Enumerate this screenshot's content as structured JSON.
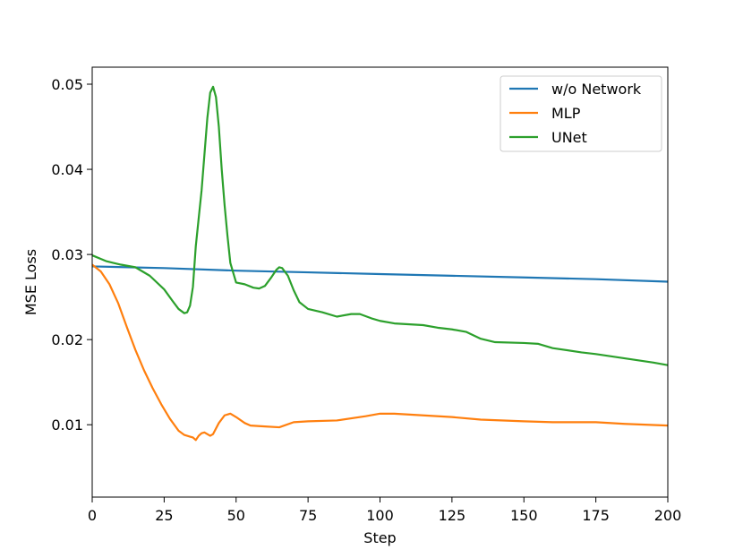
{
  "chart_data": {
    "type": "line",
    "title": "",
    "xlabel": "Step",
    "ylabel": "MSE Loss",
    "xlim": [
      0,
      200
    ],
    "ylim": [
      0.0015,
      0.052
    ],
    "xticks": [
      0,
      25,
      50,
      75,
      100,
      125,
      150,
      175,
      200
    ],
    "xtick_labels": [
      "0",
      "25",
      "50",
      "75",
      "100",
      "125",
      "150",
      "175",
      "200"
    ],
    "yticks": [
      0.01,
      0.02,
      0.03,
      0.04,
      0.05
    ],
    "ytick_labels": [
      "0.01",
      "0.02",
      "0.03",
      "0.04",
      "0.05"
    ],
    "grid": false,
    "legend_position": "top-right",
    "series": [
      {
        "name": "w/o Network",
        "color": "#1f77b4",
        "points": [
          [
            0,
            0.0286
          ],
          [
            25,
            0.0284
          ],
          [
            50,
            0.0281
          ],
          [
            75,
            0.0279
          ],
          [
            100,
            0.0277
          ],
          [
            125,
            0.0275
          ],
          [
            150,
            0.0273
          ],
          [
            175,
            0.0271
          ],
          [
            200,
            0.0268
          ]
        ]
      },
      {
        "name": "MLP",
        "color": "#ff7f0e",
        "points": [
          [
            0,
            0.0288
          ],
          [
            3,
            0.028
          ],
          [
            6,
            0.0265
          ],
          [
            9,
            0.0243
          ],
          [
            12,
            0.0215
          ],
          [
            15,
            0.0188
          ],
          [
            18,
            0.0164
          ],
          [
            21,
            0.0143
          ],
          [
            24,
            0.0124
          ],
          [
            27,
            0.0107
          ],
          [
            30,
            0.0093
          ],
          [
            32,
            0.0088
          ],
          [
            34,
            0.0086
          ],
          [
            35,
            0.0085
          ],
          [
            36,
            0.0082
          ],
          [
            37,
            0.0087
          ],
          [
            38,
            0.009
          ],
          [
            39,
            0.0091
          ],
          [
            40,
            0.0089
          ],
          [
            41,
            0.0087
          ],
          [
            42,
            0.0089
          ],
          [
            44,
            0.0102
          ],
          [
            46,
            0.0111
          ],
          [
            48,
            0.0113
          ],
          [
            50,
            0.0109
          ],
          [
            53,
            0.0102
          ],
          [
            55,
            0.0099
          ],
          [
            60,
            0.0098
          ],
          [
            65,
            0.0097
          ],
          [
            70,
            0.0103
          ],
          [
            75,
            0.0104
          ],
          [
            85,
            0.0105
          ],
          [
            95,
            0.011
          ],
          [
            100,
            0.0113
          ],
          [
            105,
            0.0113
          ],
          [
            115,
            0.0111
          ],
          [
            125,
            0.0109
          ],
          [
            135,
            0.0106
          ],
          [
            150,
            0.0104
          ],
          [
            160,
            0.0103
          ],
          [
            175,
            0.0103
          ],
          [
            185,
            0.0101
          ],
          [
            200,
            0.0099
          ]
        ]
      },
      {
        "name": "UNet",
        "color": "#2ca02c",
        "points": [
          [
            0,
            0.0299
          ],
          [
            5,
            0.0292
          ],
          [
            10,
            0.0288
          ],
          [
            15,
            0.0285
          ],
          [
            20,
            0.0275
          ],
          [
            25,
            0.0259
          ],
          [
            28,
            0.0245
          ],
          [
            30,
            0.0236
          ],
          [
            32,
            0.0231
          ],
          [
            33,
            0.0232
          ],
          [
            34,
            0.024
          ],
          [
            35,
            0.0262
          ],
          [
            36,
            0.031
          ],
          [
            38,
            0.0375
          ],
          [
            40,
            0.046
          ],
          [
            41,
            0.049
          ],
          [
            42,
            0.0497
          ],
          [
            43,
            0.0485
          ],
          [
            44,
            0.045
          ],
          [
            45,
            0.04
          ],
          [
            46,
            0.0358
          ],
          [
            47,
            0.0322
          ],
          [
            48,
            0.029
          ],
          [
            50,
            0.0267
          ],
          [
            53,
            0.0265
          ],
          [
            56,
            0.0261
          ],
          [
            58,
            0.026
          ],
          [
            60,
            0.0263
          ],
          [
            62,
            0.0272
          ],
          [
            64,
            0.0282
          ],
          [
            65,
            0.0285
          ],
          [
            66,
            0.0284
          ],
          [
            68,
            0.0275
          ],
          [
            70,
            0.0258
          ],
          [
            72,
            0.0244
          ],
          [
            75,
            0.0236
          ],
          [
            80,
            0.0232
          ],
          [
            85,
            0.0227
          ],
          [
            90,
            0.023
          ],
          [
            93,
            0.023
          ],
          [
            97,
            0.0225
          ],
          [
            100,
            0.0222
          ],
          [
            105,
            0.0219
          ],
          [
            115,
            0.0217
          ],
          [
            120,
            0.0214
          ],
          [
            125,
            0.0212
          ],
          [
            130,
            0.0209
          ],
          [
            135,
            0.0201
          ],
          [
            140,
            0.0197
          ],
          [
            150,
            0.0196
          ],
          [
            155,
            0.0195
          ],
          [
            160,
            0.019
          ],
          [
            170,
            0.0185
          ],
          [
            175,
            0.0183
          ],
          [
            185,
            0.0178
          ],
          [
            195,
            0.0173
          ],
          [
            200,
            0.017
          ]
        ]
      }
    ]
  }
}
